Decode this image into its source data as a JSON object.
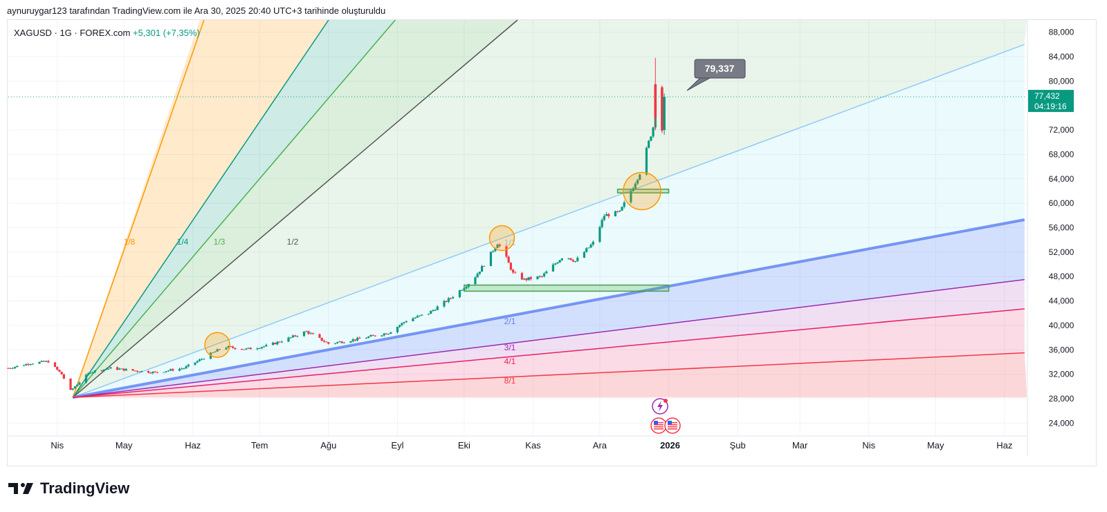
{
  "header": {
    "attribution": "aynuruygar123 tarafından TradingView.com ile Ara 30, 2025 20:40 UTC+3 tarihinde oluşturuldu"
  },
  "symbol": {
    "name": "XAGUSD · 1G · FOREX.com",
    "change": "+5,301 (+7,35%)"
  },
  "brand": {
    "name": "TradingView"
  },
  "colors": {
    "up": "#089981",
    "down": "#f23645",
    "price_label": "#089981"
  },
  "icons": [
    "tradingview-logo-icon",
    "lightning-event-icon",
    "us-flag-event-icon"
  ],
  "chart_data": {
    "type": "candlestick",
    "title": "XAGUSD · 1G · FOREX.com",
    "ylim": [
      22000,
      90000
    ],
    "y_ticks": [
      {
        "v": 88000,
        "label": "88,000"
      },
      {
        "v": 84000,
        "label": "84,000"
      },
      {
        "v": 80000,
        "label": "80,000"
      },
      {
        "v": 72000,
        "label": "72,000"
      },
      {
        "v": 68000,
        "label": "68,000"
      },
      {
        "v": 64000,
        "label": "64,000"
      },
      {
        "v": 60000,
        "label": "60,000"
      },
      {
        "v": 56000,
        "label": "56,000"
      },
      {
        "v": 52000,
        "label": "52,000"
      },
      {
        "v": 48000,
        "label": "48,000"
      },
      {
        "v": 44000,
        "label": "44,000"
      },
      {
        "v": 40000,
        "label": "40,000"
      },
      {
        "v": 36000,
        "label": "36,000"
      },
      {
        "v": 32000,
        "label": "32,000"
      },
      {
        "v": 28000,
        "label": "28,000"
      },
      {
        "v": 24000,
        "label": "24,000"
      }
    ],
    "x_ticks": [
      {
        "d": "2025-04-01",
        "label": "Nis",
        "bold": false
      },
      {
        "d": "2025-05-01",
        "label": "May",
        "bold": false
      },
      {
        "d": "2025-06-01",
        "label": "Haz",
        "bold": false
      },
      {
        "d": "2025-07-01",
        "label": "Tem",
        "bold": false
      },
      {
        "d": "2025-08-01",
        "label": "Ağu",
        "bold": false
      },
      {
        "d": "2025-09-01",
        "label": "Eyl",
        "bold": false
      },
      {
        "d": "2025-10-01",
        "label": "Eki",
        "bold": false
      },
      {
        "d": "2025-11-01",
        "label": "Kas",
        "bold": false
      },
      {
        "d": "2025-12-01",
        "label": "Ara",
        "bold": false
      },
      {
        "d": "2026-01-01",
        "label": "2026",
        "bold": true
      },
      {
        "d": "2026-02-01",
        "label": "Şub",
        "bold": false
      },
      {
        "d": "2026-03-01",
        "label": "Mar",
        "bold": false
      },
      {
        "d": "2026-04-01",
        "label": "Nis",
        "bold": false
      },
      {
        "d": "2026-05-01",
        "label": "May",
        "bold": false
      },
      {
        "d": "2026-06-01",
        "label": "Haz",
        "bold": false
      }
    ],
    "current_price": {
      "value": 77432,
      "label": "77,432",
      "countdown": "04:19:16"
    },
    "callout": {
      "value": 79337,
      "label": "79,337"
    },
    "price_path": [
      [
        "2025-03-10",
        33000
      ],
      [
        "2025-03-20",
        33800
      ],
      [
        "2025-03-28",
        34100
      ],
      [
        "2025-04-03",
        32000
      ],
      [
        "2025-04-07",
        29300
      ],
      [
        "2025-04-10",
        30400
      ],
      [
        "2025-04-16",
        32400
      ],
      [
        "2025-04-25",
        33000
      ],
      [
        "2025-05-05",
        32600
      ],
      [
        "2025-05-15",
        32300
      ],
      [
        "2025-05-28",
        33000
      ],
      [
        "2025-06-05",
        34500
      ],
      [
        "2025-06-15",
        36500
      ],
      [
        "2025-06-25",
        36100
      ],
      [
        "2025-07-05",
        36700
      ],
      [
        "2025-07-15",
        38000
      ],
      [
        "2025-07-22",
        39000
      ],
      [
        "2025-08-01",
        37000
      ],
      [
        "2025-08-15",
        37800
      ],
      [
        "2025-08-28",
        38800
      ],
      [
        "2025-09-05",
        40800
      ],
      [
        "2025-09-15",
        42000
      ],
      [
        "2025-09-25",
        44500
      ],
      [
        "2025-10-05",
        47500
      ],
      [
        "2025-10-10",
        50000
      ],
      [
        "2025-10-16",
        53500
      ],
      [
        "2025-10-19",
        51800
      ],
      [
        "2025-10-23",
        48500
      ],
      [
        "2025-10-28",
        47500
      ],
      [
        "2025-11-05",
        48000
      ],
      [
        "2025-11-12",
        50500
      ],
      [
        "2025-11-15",
        51500
      ],
      [
        "2025-11-20",
        50500
      ],
      [
        "2025-11-28",
        53500
      ],
      [
        "2025-12-03",
        58000
      ],
      [
        "2025-12-10",
        58500
      ],
      [
        "2025-12-15",
        62000
      ],
      [
        "2025-12-19",
        65000
      ],
      [
        "2025-12-23",
        70000
      ],
      [
        "2025-12-25",
        72500
      ],
      [
        "2025-12-26",
        79000
      ],
      [
        "2025-12-29",
        72000
      ],
      [
        "2025-12-30",
        77432
      ]
    ],
    "fan": {
      "origin": [
        "2025-04-08",
        28200
      ],
      "lines": [
        {
          "label": "1/8",
          "end": [
            "2025-06-06",
            90000
          ],
          "color": "#ff9800"
        },
        {
          "label": "1/4",
          "end": [
            "2025-08-01",
            90000
          ],
          "color": "#089981"
        },
        {
          "label": "1/3",
          "end": [
            "2025-08-31",
            90000
          ],
          "color": "#4caf50"
        },
        {
          "label": "1/2",
          "end": [
            "2025-10-25",
            90000
          ],
          "color": "#555555"
        },
        {
          "label": "1/1",
          "end": [
            "2026-06-10",
            86000
          ],
          "color": "#90caf9"
        },
        {
          "label": "2/1",
          "end": [
            "2026-06-10",
            57300
          ],
          "color": "#5b7ef0"
        },
        {
          "label": "3/1",
          "end": [
            "2026-06-10",
            47500
          ],
          "color": "#9c27b0"
        },
        {
          "label": "4/1",
          "end": [
            "2026-06-10",
            42700
          ],
          "color": "#e91e63"
        },
        {
          "label": "8/1",
          "end": [
            "2026-06-10",
            35500
          ],
          "color": "#f23645"
        }
      ]
    },
    "zones": [
      {
        "from": "2025-12-09",
        "to": "2026-01-01",
        "low": 61700,
        "high": 62300
      },
      {
        "from": "2025-10-01",
        "to": "2026-01-01",
        "low": 45600,
        "high": 46600
      }
    ],
    "circles": [
      [
        "2025-06-12",
        36800
      ],
      [
        "2025-10-18",
        54300
      ],
      [
        "2025-12-20",
        62000
      ]
    ]
  }
}
